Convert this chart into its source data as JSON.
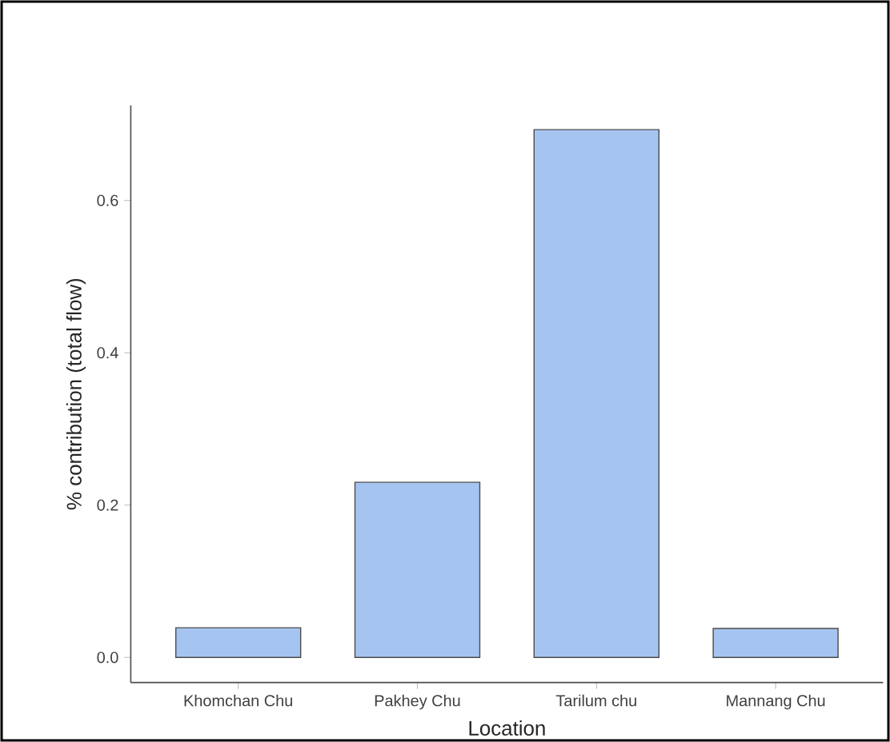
{
  "chart_data": {
    "type": "bar",
    "xlabel": "Location",
    "ylabel": "% contribution (total flow)",
    "categories": [
      "Khomchan Chu",
      "Pakhey Chu",
      "Tarilum chu",
      "Mannang Chu"
    ],
    "values": [
      0.039,
      0.23,
      0.693,
      0.038
    ],
    "color": "#a6c4f0",
    "ylim": [
      -0.033,
      0.725
    ],
    "yticks": [
      {
        "value": 0,
        "label": "0.0"
      },
      0.2,
      0.4,
      0.6
    ],
    "grid": false
  }
}
